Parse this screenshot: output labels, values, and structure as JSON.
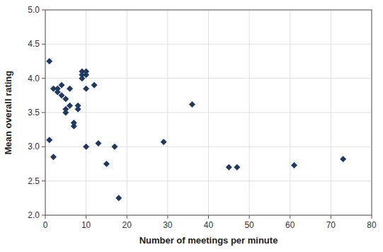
{
  "chart_data": {
    "type": "scatter",
    "xlabel": "Number of meetings per minute",
    "ylabel": "Mean overall rating",
    "x": [
      1,
      1,
      2,
      2,
      3,
      3,
      4,
      4,
      5,
      5,
      5,
      6,
      6,
      7,
      7,
      8,
      8,
      9,
      9,
      9,
      10,
      10,
      10,
      10,
      12,
      13,
      15,
      17,
      18,
      29,
      36,
      45,
      47,
      61,
      73
    ],
    "values": [
      4.25,
      3.1,
      3.85,
      2.85,
      3.85,
      3.8,
      3.9,
      3.75,
      3.7,
      3.55,
      3.5,
      3.85,
      3.6,
      3.3,
      3.35,
      3.55,
      3.6,
      4.1,
      4.05,
      4.0,
      4.1,
      4.05,
      3.85,
      3.0,
      3.9,
      3.05,
      2.75,
      3.0,
      2.25,
      3.07,
      3.62,
      2.7,
      2.7,
      2.73,
      2.82
    ],
    "color": "#1F3864",
    "marker": "diamond",
    "xlim": [
      0,
      80
    ],
    "ylim": [
      2.0,
      5.0
    ],
    "xticks": [
      0,
      10,
      20,
      30,
      40,
      50,
      60,
      70,
      80
    ],
    "yticks": [
      {
        "value": 2.0,
        "label": "2.0"
      },
      {
        "value": 2.5,
        "label": "2.5"
      },
      {
        "value": 3.0,
        "label": "3.0"
      },
      {
        "value": 3.5,
        "label": "3.5"
      },
      {
        "value": 4.0,
        "label": "4.0"
      },
      {
        "value": 4.5,
        "label": "4.5"
      },
      {
        "value": 5.0,
        "label": "5.0"
      }
    ],
    "grid": true
  }
}
